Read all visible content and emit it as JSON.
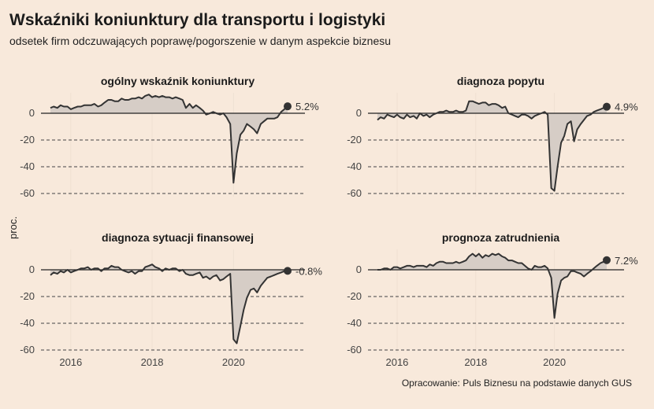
{
  "title": "Wskaźniki koniunktury dla transportu i logistyki",
  "subtitle": "odsetek firm odczuwających poprawę/pogorszenie w danym aspekcie biznesu",
  "ylabel": "proc.",
  "caption": "Opracowanie: Puls Biznesu na podstawie danych GUS",
  "colors": {
    "background": "#f8e9db",
    "line": "#333333",
    "area": "#d6cdc6",
    "grid": "#444444"
  },
  "chart_data": [
    {
      "type": "area",
      "title": "ogólny wskaźnik koniunktury",
      "end_label": "5.2%",
      "xticks": [
        "2016",
        "2018",
        "2020"
      ],
      "yticks": [
        "0",
        "-20",
        "-40",
        "-60"
      ],
      "ylim": [
        -62,
        16
      ],
      "x": [
        2015.5,
        2015.58,
        2015.67,
        2015.75,
        2015.83,
        2015.92,
        2016.0,
        2016.08,
        2016.17,
        2016.25,
        2016.33,
        2016.42,
        2016.5,
        2016.58,
        2016.67,
        2016.75,
        2016.83,
        2016.92,
        2017.0,
        2017.08,
        2017.17,
        2017.25,
        2017.33,
        2017.42,
        2017.5,
        2017.58,
        2017.67,
        2017.75,
        2017.83,
        2017.92,
        2018.0,
        2018.08,
        2018.17,
        2018.25,
        2018.33,
        2018.42,
        2018.5,
        2018.58,
        2018.67,
        2018.75,
        2018.83,
        2018.92,
        2019.0,
        2019.08,
        2019.17,
        2019.25,
        2019.33,
        2019.42,
        2019.5,
        2019.58,
        2019.67,
        2019.75,
        2019.83,
        2019.92,
        2020.0,
        2020.08,
        2020.17,
        2020.25,
        2020.33,
        2020.42,
        2020.5,
        2020.58,
        2020.67,
        2020.75,
        2020.83,
        2020.92,
        2021.0,
        2021.08,
        2021.17,
        2021.25,
        2021.33
      ],
      "values": [
        4,
        5,
        4,
        6,
        5,
        5,
        3,
        4,
        5,
        5,
        6,
        6,
        6,
        7,
        5,
        6,
        8,
        10,
        10,
        9,
        9,
        11,
        10,
        10,
        11,
        11,
        12,
        11,
        13,
        14,
        12,
        13,
        12,
        13,
        12,
        12,
        11,
        12,
        11,
        10,
        4,
        7,
        4,
        6,
        4,
        2,
        -1,
        0,
        1,
        0,
        -1,
        0,
        -3,
        -8,
        -52,
        -30,
        -16,
        -13,
        -8,
        -10,
        -12,
        -15,
        -8,
        -6,
        -4,
        -4,
        -4,
        -3,
        1,
        3,
        5.2
      ]
    },
    {
      "type": "area",
      "title": "diagnoza popytu",
      "end_label": "4.9%",
      "xticks": [
        "2016",
        "2018",
        "2020"
      ],
      "yticks": [
        "0",
        "-20",
        "-40",
        "-60"
      ],
      "ylim": [
        -62,
        16
      ],
      "x": [
        2015.5,
        2015.58,
        2015.67,
        2015.75,
        2015.83,
        2015.92,
        2016.0,
        2016.08,
        2016.17,
        2016.25,
        2016.33,
        2016.42,
        2016.5,
        2016.58,
        2016.67,
        2016.75,
        2016.83,
        2016.92,
        2017.0,
        2017.08,
        2017.17,
        2017.25,
        2017.33,
        2017.42,
        2017.5,
        2017.58,
        2017.67,
        2017.75,
        2017.83,
        2017.92,
        2018.0,
        2018.08,
        2018.17,
        2018.25,
        2018.33,
        2018.42,
        2018.5,
        2018.58,
        2018.67,
        2018.75,
        2018.83,
        2018.92,
        2019.0,
        2019.08,
        2019.17,
        2019.25,
        2019.33,
        2019.42,
        2019.5,
        2019.58,
        2019.67,
        2019.75,
        2019.83,
        2019.92,
        2020.0,
        2020.08,
        2020.17,
        2020.25,
        2020.33,
        2020.42,
        2020.5,
        2020.58,
        2020.67,
        2020.75,
        2020.83,
        2020.92,
        2021.0,
        2021.08,
        2021.17,
        2021.25,
        2021.33
      ],
      "values": [
        -5,
        -3,
        -4,
        -1,
        -2,
        -3,
        -1,
        -3,
        -4,
        -1,
        -3,
        -2,
        -4,
        0,
        -2,
        -1,
        -3,
        -1,
        0,
        1,
        1,
        2,
        1,
        1,
        2,
        1,
        1,
        2,
        9,
        9,
        8,
        7,
        8,
        8,
        6,
        7,
        7,
        6,
        4,
        5,
        0,
        -1,
        -2,
        -3,
        -1,
        -1,
        -2,
        -4,
        -2,
        -1,
        0,
        1,
        -1,
        -56,
        -58,
        -40,
        -22,
        -17,
        -8,
        -6,
        -21,
        -12,
        -8,
        -5,
        -2,
        -1,
        1,
        2,
        3,
        4,
        4.9
      ]
    },
    {
      "type": "area",
      "title": "diagnoza sytuacji finansowej",
      "end_label": "-0.8%",
      "xticks": [
        "2016",
        "2018",
        "2020"
      ],
      "yticks": [
        "0",
        "-20",
        "-40",
        "-60"
      ],
      "ylim": [
        -62,
        16
      ],
      "x": [
        2015.5,
        2015.58,
        2015.67,
        2015.75,
        2015.83,
        2015.92,
        2016.0,
        2016.08,
        2016.17,
        2016.25,
        2016.33,
        2016.42,
        2016.5,
        2016.58,
        2016.67,
        2016.75,
        2016.83,
        2016.92,
        2017.0,
        2017.08,
        2017.17,
        2017.25,
        2017.33,
        2017.42,
        2017.5,
        2017.58,
        2017.67,
        2017.75,
        2017.83,
        2017.92,
        2018.0,
        2018.08,
        2018.17,
        2018.25,
        2018.33,
        2018.42,
        2018.5,
        2018.58,
        2018.67,
        2018.75,
        2018.83,
        2018.92,
        2019.0,
        2019.08,
        2019.17,
        2019.25,
        2019.33,
        2019.42,
        2019.5,
        2019.58,
        2019.67,
        2019.75,
        2019.83,
        2019.92,
        2020.0,
        2020.08,
        2020.17,
        2020.25,
        2020.33,
        2020.42,
        2020.5,
        2020.58,
        2020.67,
        2020.75,
        2020.83,
        2020.92,
        2021.0,
        2021.08,
        2021.17,
        2021.25,
        2021.33
      ],
      "values": [
        -4,
        -2,
        -3,
        -1,
        -2,
        0,
        -2,
        -1,
        0,
        1,
        1,
        2,
        0,
        1,
        1,
        -1,
        1,
        1,
        3,
        2,
        2,
        0,
        -1,
        -2,
        -1,
        -3,
        -1,
        -1,
        2,
        3,
        4,
        2,
        1,
        -1,
        1,
        0,
        1,
        1,
        -1,
        0,
        -3,
        -4,
        -4,
        -3,
        -2,
        -6,
        -5,
        -7,
        -5,
        -4,
        -8,
        -7,
        -5,
        -3,
        -52,
        -55,
        -42,
        -30,
        -21,
        -15,
        -14,
        -17,
        -12,
        -9,
        -6,
        -5,
        -4,
        -3,
        -2,
        -1,
        -0.8
      ]
    },
    {
      "type": "area",
      "title": "prognoza zatrudnienia",
      "end_label": "7.2%",
      "xticks": [
        "2016",
        "2018",
        "2020"
      ],
      "yticks": [
        "0",
        "-20",
        "-40",
        "-60"
      ],
      "ylim": [
        -62,
        16
      ],
      "x": [
        2015.5,
        2015.58,
        2015.67,
        2015.75,
        2015.83,
        2015.92,
        2016.0,
        2016.08,
        2016.17,
        2016.25,
        2016.33,
        2016.42,
        2016.5,
        2016.58,
        2016.67,
        2016.75,
        2016.83,
        2016.92,
        2017.0,
        2017.08,
        2017.17,
        2017.25,
        2017.33,
        2017.42,
        2017.5,
        2017.58,
        2017.67,
        2017.75,
        2017.83,
        2017.92,
        2018.0,
        2018.08,
        2018.17,
        2018.25,
        2018.33,
        2018.42,
        2018.5,
        2018.58,
        2018.67,
        2018.75,
        2018.83,
        2018.92,
        2019.0,
        2019.08,
        2019.17,
        2019.25,
        2019.33,
        2019.42,
        2019.5,
        2019.58,
        2019.67,
        2019.75,
        2019.83,
        2019.92,
        2020.0,
        2020.08,
        2020.17,
        2020.25,
        2020.33,
        2020.42,
        2020.5,
        2020.58,
        2020.67,
        2020.75,
        2020.83,
        2020.92,
        2021.0,
        2021.08,
        2021.17,
        2021.25,
        2021.33
      ],
      "values": [
        0,
        0,
        1,
        1,
        0,
        2,
        2,
        1,
        2,
        3,
        3,
        2,
        3,
        3,
        3,
        2,
        4,
        3,
        5,
        6,
        6,
        5,
        5,
        5,
        6,
        5,
        6,
        7,
        10,
        12,
        10,
        12,
        9,
        11,
        10,
        12,
        11,
        12,
        10,
        9,
        7,
        7,
        6,
        5,
        5,
        3,
        1,
        0,
        3,
        2,
        2,
        3,
        1,
        -6,
        -36,
        -18,
        -8,
        -6,
        -5,
        -1,
        -1,
        -2,
        -3,
        -5,
        -3,
        -1,
        1,
        3,
        5,
        6,
        7.2
      ]
    }
  ]
}
